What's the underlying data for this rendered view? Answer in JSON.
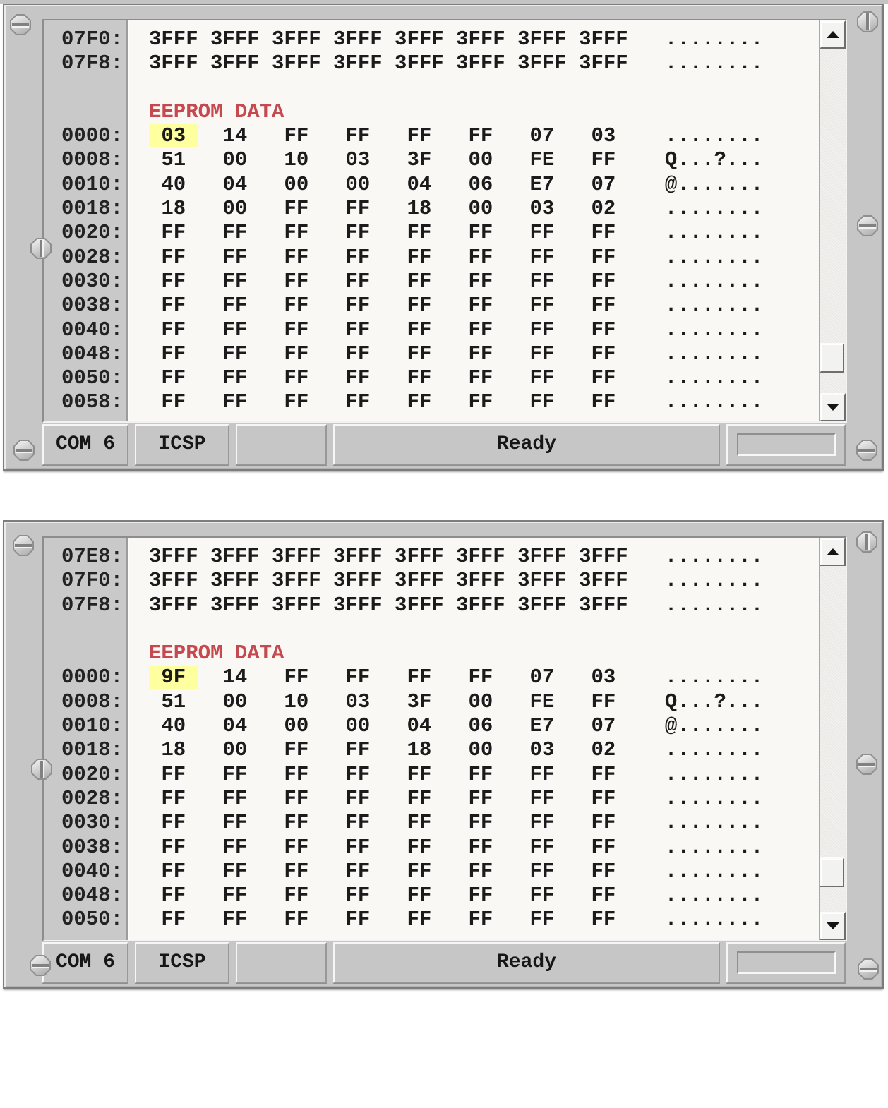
{
  "colors": {
    "plate": "#c6c6c6",
    "paper": "#f9f8f5",
    "section_label_red": "#c5494e",
    "byte_highlight_yellow": "#feff9e"
  },
  "icons": {
    "scroll_up": "triangle-up",
    "scroll_down": "triangle-down",
    "screw_horizontal_slot": "octagon-screw-h",
    "screw_vertical_slot": "octagon-screw-v"
  },
  "panels": [
    {
      "name": "top-capture",
      "lines": [
        {
          "addr": "07F0:",
          "type": "words",
          "values": [
            "3FFF",
            "3FFF",
            "3FFF",
            "3FFF",
            "3FFF",
            "3FFF",
            "3FFF",
            "3FFF"
          ],
          "ascii": "........"
        },
        {
          "addr": "07F8:",
          "type": "words",
          "values": [
            "3FFF",
            "3FFF",
            "3FFF",
            "3FFF",
            "3FFF",
            "3FFF",
            "3FFF",
            "3FFF"
          ],
          "ascii": "........"
        },
        {
          "addr": "",
          "type": "blank"
        },
        {
          "addr": "",
          "type": "label",
          "label": "EEPROM DATA"
        },
        {
          "addr": "0000:",
          "type": "bytes",
          "values": [
            "03",
            "14",
            "FF",
            "FF",
            "FF",
            "FF",
            "07",
            "03"
          ],
          "ascii": "........",
          "highlight": 0
        },
        {
          "addr": "0008:",
          "type": "bytes",
          "values": [
            "51",
            "00",
            "10",
            "03",
            "3F",
            "00",
            "FE",
            "FF"
          ],
          "ascii": "Q...?..."
        },
        {
          "addr": "0010:",
          "type": "bytes",
          "values": [
            "40",
            "04",
            "00",
            "00",
            "04",
            "06",
            "E7",
            "07"
          ],
          "ascii": "@......."
        },
        {
          "addr": "0018:",
          "type": "bytes",
          "values": [
            "18",
            "00",
            "FF",
            "FF",
            "18",
            "00",
            "03",
            "02"
          ],
          "ascii": "........"
        },
        {
          "addr": "0020:",
          "type": "bytes",
          "values": [
            "FF",
            "FF",
            "FF",
            "FF",
            "FF",
            "FF",
            "FF",
            "FF"
          ],
          "ascii": "........"
        },
        {
          "addr": "0028:",
          "type": "bytes",
          "values": [
            "FF",
            "FF",
            "FF",
            "FF",
            "FF",
            "FF",
            "FF",
            "FF"
          ],
          "ascii": "........"
        },
        {
          "addr": "0030:",
          "type": "bytes",
          "values": [
            "FF",
            "FF",
            "FF",
            "FF",
            "FF",
            "FF",
            "FF",
            "FF"
          ],
          "ascii": "........"
        },
        {
          "addr": "0038:",
          "type": "bytes",
          "values": [
            "FF",
            "FF",
            "FF",
            "FF",
            "FF",
            "FF",
            "FF",
            "FF"
          ],
          "ascii": "........"
        },
        {
          "addr": "0040:",
          "type": "bytes",
          "values": [
            "FF",
            "FF",
            "FF",
            "FF",
            "FF",
            "FF",
            "FF",
            "FF"
          ],
          "ascii": "........"
        },
        {
          "addr": "0048:",
          "type": "bytes",
          "values": [
            "FF",
            "FF",
            "FF",
            "FF",
            "FF",
            "FF",
            "FF",
            "FF"
          ],
          "ascii": "........"
        },
        {
          "addr": "0050:",
          "type": "bytes",
          "values": [
            "FF",
            "FF",
            "FF",
            "FF",
            "FF",
            "FF",
            "FF",
            "FF"
          ],
          "ascii": "........"
        },
        {
          "addr": "0058:",
          "type": "bytes",
          "values": [
            "FF",
            "FF",
            "FF",
            "FF",
            "FF",
            "FF",
            "FF",
            "FF"
          ],
          "ascii": "........"
        }
      ],
      "statusbar": {
        "com_port": "COM 6",
        "mode": "ICSP",
        "aux": "",
        "status": "Ready"
      }
    },
    {
      "name": "bottom-capture",
      "lines": [
        {
          "addr": "07E8:",
          "type": "words",
          "values": [
            "3FFF",
            "3FFF",
            "3FFF",
            "3FFF",
            "3FFF",
            "3FFF",
            "3FFF",
            "3FFF"
          ],
          "ascii": "........"
        },
        {
          "addr": "07F0:",
          "type": "words",
          "values": [
            "3FFF",
            "3FFF",
            "3FFF",
            "3FFF",
            "3FFF",
            "3FFF",
            "3FFF",
            "3FFF"
          ],
          "ascii": "........"
        },
        {
          "addr": "07F8:",
          "type": "words",
          "values": [
            "3FFF",
            "3FFF",
            "3FFF",
            "3FFF",
            "3FFF",
            "3FFF",
            "3FFF",
            "3FFF"
          ],
          "ascii": "........"
        },
        {
          "addr": "",
          "type": "blank"
        },
        {
          "addr": "",
          "type": "label",
          "label": "EEPROM DATA"
        },
        {
          "addr": "0000:",
          "type": "bytes",
          "values": [
            "9F",
            "14",
            "FF",
            "FF",
            "FF",
            "FF",
            "07",
            "03"
          ],
          "ascii": "........",
          "highlight": 0
        },
        {
          "addr": "0008:",
          "type": "bytes",
          "values": [
            "51",
            "00",
            "10",
            "03",
            "3F",
            "00",
            "FE",
            "FF"
          ],
          "ascii": "Q...?..."
        },
        {
          "addr": "0010:",
          "type": "bytes",
          "values": [
            "40",
            "04",
            "00",
            "00",
            "04",
            "06",
            "E7",
            "07"
          ],
          "ascii": "@......."
        },
        {
          "addr": "0018:",
          "type": "bytes",
          "values": [
            "18",
            "00",
            "FF",
            "FF",
            "18",
            "00",
            "03",
            "02"
          ],
          "ascii": "........"
        },
        {
          "addr": "0020:",
          "type": "bytes",
          "values": [
            "FF",
            "FF",
            "FF",
            "FF",
            "FF",
            "FF",
            "FF",
            "FF"
          ],
          "ascii": "........"
        },
        {
          "addr": "0028:",
          "type": "bytes",
          "values": [
            "FF",
            "FF",
            "FF",
            "FF",
            "FF",
            "FF",
            "FF",
            "FF"
          ],
          "ascii": "........"
        },
        {
          "addr": "0030:",
          "type": "bytes",
          "values": [
            "FF",
            "FF",
            "FF",
            "FF",
            "FF",
            "FF",
            "FF",
            "FF"
          ],
          "ascii": "........"
        },
        {
          "addr": "0038:",
          "type": "bytes",
          "values": [
            "FF",
            "FF",
            "FF",
            "FF",
            "FF",
            "FF",
            "FF",
            "FF"
          ],
          "ascii": "........"
        },
        {
          "addr": "0040:",
          "type": "bytes",
          "values": [
            "FF",
            "FF",
            "FF",
            "FF",
            "FF",
            "FF",
            "FF",
            "FF"
          ],
          "ascii": "........"
        },
        {
          "addr": "0048:",
          "type": "bytes",
          "values": [
            "FF",
            "FF",
            "FF",
            "FF",
            "FF",
            "FF",
            "FF",
            "FF"
          ],
          "ascii": "........"
        },
        {
          "addr": "0050:",
          "type": "bytes",
          "values": [
            "FF",
            "FF",
            "FF",
            "FF",
            "FF",
            "FF",
            "FF",
            "FF"
          ],
          "ascii": "........"
        }
      ],
      "statusbar": {
        "com_port": "COM 6",
        "mode": "ICSP",
        "aux": "",
        "status": "Ready"
      }
    }
  ]
}
